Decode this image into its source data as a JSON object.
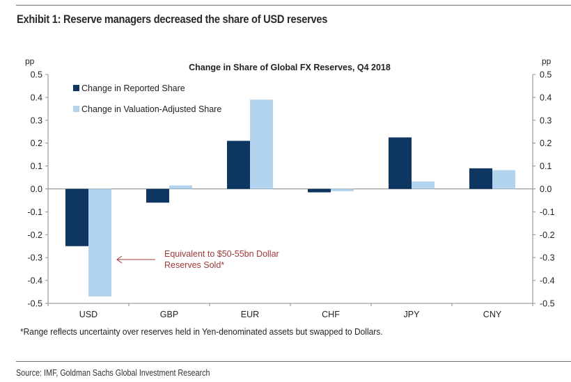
{
  "exhibit_title": "Exhibit 1: Reserve managers decreased the share of USD reserves",
  "footnote": "*Range reflects uncertainty over  reserves held in Yen-denominated assets but swapped to Dollars.",
  "source": "Source: IMF, Goldman Sachs Global Investment Research",
  "chart_data": {
    "type": "bar",
    "title": "Change in Share of Global FX Reserves, Q4 2018",
    "xlabel": "",
    "ylabel": "pp",
    "ylabel_right": "pp",
    "ylim": [
      -0.5,
      0.5
    ],
    "yticks": [
      0.5,
      0.4,
      0.3,
      0.2,
      0.1,
      0.0,
      -0.1,
      -0.2,
      -0.3,
      -0.4,
      -0.5
    ],
    "ytick_labels": [
      "0.5",
      "0.4",
      "0.3",
      "0.2",
      "0.1",
      "0.0",
      "-0.1",
      "-0.2",
      "-0.3",
      "-0.4",
      "-0.5"
    ],
    "grid": false,
    "legend_position": "top-left",
    "categories": [
      "USD",
      "GBP",
      "EUR",
      "CHF",
      "JPY",
      "CNY"
    ],
    "series": [
      {
        "name": "Change in Reported Share",
        "color": "#0d3660",
        "values": [
          -0.25,
          -0.06,
          0.21,
          -0.015,
          0.225,
          0.09
        ]
      },
      {
        "name": "Change in Valuation-Adjusted Share",
        "color": "#b3d4ee",
        "values": [
          -0.47,
          0.015,
          0.39,
          -0.01,
          0.033,
          0.082
        ]
      }
    ],
    "annotation": {
      "lines": [
        "Equivalent to $50-55bn Dollar",
        "Reserves Sold*"
      ],
      "color": "#a0393a",
      "points_to": "USD valuation-adjusted bar"
    }
  }
}
